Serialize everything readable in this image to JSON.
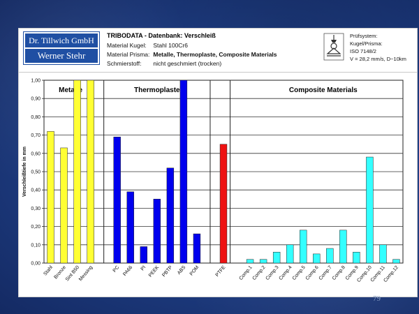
{
  "header": {
    "company_line1": "Dr. Tillwich GmbH",
    "company_line2": "Werner Stehr",
    "title": "TRIBODATA - Datenbank: Verschleiß",
    "row1_label": "Material Kugel:",
    "row1_value": "Stahl 100Cr6",
    "row2_label": "Material Prisma:",
    "row2_value": "Metalle, Thermoplaste, Composite Materials",
    "row3_label": "Schmierstoff:",
    "row3_value": "nicht geschmiert (trocken)",
    "system_line1": "Prüfsystem:",
    "system_line2": "Kugel/Prisma:",
    "system_line3": "ISO 7148/2",
    "system_line4": "V = 28,2 mm/s, D~10km",
    "test_icon": "ball-on-prism-test-icon"
  },
  "page_number": "79",
  "chart_data": {
    "type": "bar",
    "title": "",
    "ylabel": "Verschleißtiefe in mm",
    "xlabel": "",
    "ylim": [
      0,
      1.0
    ],
    "yticks": [
      "0,00",
      "0,10",
      "0,20",
      "0,30",
      "0,40",
      "0,50",
      "0,60",
      "0,70",
      "0,80",
      "0,90",
      "1,00"
    ],
    "grid": "horizontal",
    "groups": [
      {
        "label": "Metalle",
        "color": "#ffff33",
        "start": 0,
        "end": 3
      },
      {
        "label": "Thermoplaste",
        "color": "#0000ee",
        "start": 5,
        "end": 11
      },
      {
        "label": "Composite Materials",
        "color": "#33ffff",
        "start": 15,
        "end": 26
      }
    ],
    "categories": [
      "Stahl",
      "Bronze",
      "Sint B50",
      "Messing",
      "",
      "PC",
      "PA66",
      "PI",
      "PEEK",
      "PBTP",
      "ABS",
      "POM",
      "",
      "PTFE",
      "",
      "Comp.1",
      "Comp.2",
      "Comp.3",
      "Comp.4",
      "Comp.5",
      "Comp.6",
      "Comp.7",
      "Comp.8",
      "Comp.9",
      "Comp.10",
      "Comp.11",
      "Comp.12"
    ],
    "values": [
      0.72,
      0.63,
      1.0,
      1.0,
      null,
      0.69,
      0.39,
      0.09,
      0.35,
      0.52,
      1.0,
      0.16,
      null,
      0.65,
      null,
      0.02,
      0.02,
      0.06,
      0.1,
      0.18,
      0.05,
      0.08,
      0.18,
      0.06,
      0.58,
      0.1,
      0.02
    ],
    "colors": [
      "#ffff33",
      "#ffff33",
      "#ffff33",
      "#ffff33",
      null,
      "#0000ee",
      "#0000ee",
      "#0000ee",
      "#0000ee",
      "#0000ee",
      "#0000ee",
      "#0000ee",
      null,
      "#ee1111",
      null,
      "#33ffff",
      "#33ffff",
      "#33ffff",
      "#33ffff",
      "#33ffff",
      "#33ffff",
      "#33ffff",
      "#33ffff",
      "#33ffff",
      "#33ffff",
      "#33ffff",
      "#33ffff"
    ]
  }
}
